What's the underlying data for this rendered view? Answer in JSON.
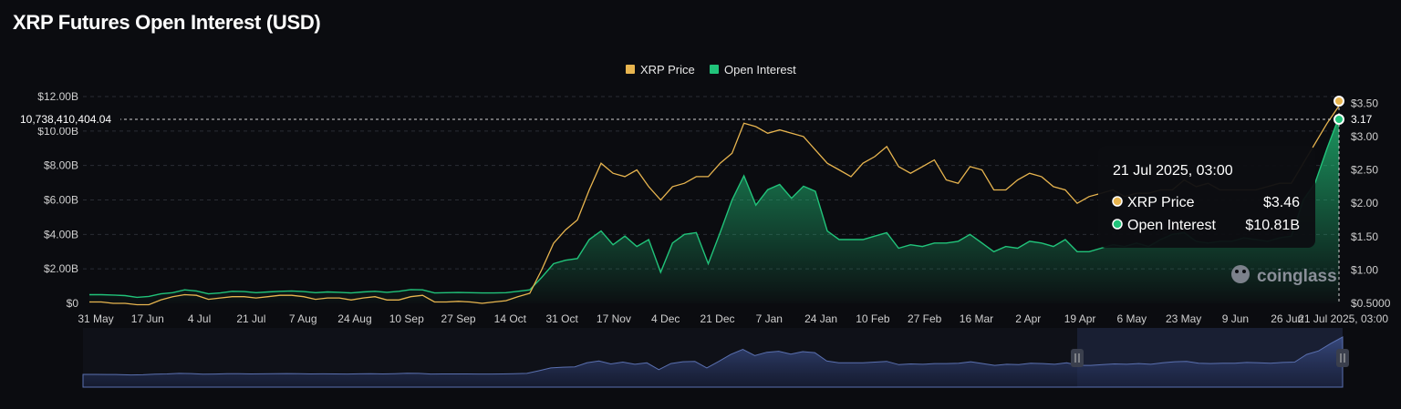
{
  "title": "XRP Futures Open Interest (USD)",
  "brand": "coinglass",
  "colors": {
    "price": "#e8b54f",
    "oi": "#21c37a",
    "background": "#0b0c10",
    "navigator": "#3b4a7a"
  },
  "chart_data": {
    "type": "line",
    "title": "XRP Futures Open Interest (USD)",
    "legend": {
      "position": "top-center",
      "items": [
        {
          "name": "XRP Price",
          "color": "#e8b54f"
        },
        {
          "name": "Open Interest",
          "color": "#21c37a"
        }
      ]
    },
    "grid": true,
    "x_ticks": [
      "31 May",
      "17 Jun",
      "4 Jul",
      "21 Jul",
      "7 Aug",
      "24 Aug",
      "10 Sep",
      "27 Sep",
      "14 Oct",
      "31 Oct",
      "17 Nov",
      "4 Dec",
      "21 Dec",
      "7 Jan",
      "24 Jan",
      "10 Feb",
      "27 Feb",
      "16 Mar",
      "2 Apr",
      "19 Apr",
      "6 May",
      "23 May",
      "9 Jun",
      "26 Jun",
      "21 Jul 2025, 03:00"
    ],
    "y_left": {
      "ticks": [
        "$0",
        "$2.00B",
        "$4.00B",
        "$6.00B",
        "$8.00B",
        "$10.00B",
        "$12.00B"
      ],
      "range": [
        0,
        12
      ]
    },
    "y_right": {
      "ticks": [
        "$0.5000",
        "$1.00",
        "$1.50",
        "$2.00",
        "$2.50",
        "$3.00",
        "$3.50"
      ],
      "range": [
        0.5,
        3.6
      ]
    },
    "crosshair": {
      "left_label": "10,738,410,404.04",
      "right_label": "3.17"
    },
    "tooltip": {
      "date": "21 Jul 2025, 03:00",
      "rows": [
        {
          "name": "XRP Price",
          "value": "$3.46",
          "color": "#e8b54f"
        },
        {
          "name": "Open Interest",
          "value": "$10.81B",
          "color": "#21c37a"
        }
      ]
    },
    "series": [
      {
        "name": "Open Interest",
        "axis": "left",
        "unit": "B USD",
        "values": [
          0.5,
          0.5,
          0.48,
          0.45,
          0.35,
          0.4,
          0.55,
          0.62,
          0.78,
          0.72,
          0.55,
          0.6,
          0.7,
          0.68,
          0.62,
          0.66,
          0.7,
          0.72,
          0.68,
          0.62,
          0.66,
          0.64,
          0.6,
          0.66,
          0.7,
          0.64,
          0.7,
          0.8,
          0.78,
          0.6,
          0.62,
          0.63,
          0.62,
          0.6,
          0.6,
          0.62,
          0.7,
          0.78,
          1.5,
          2.3,
          2.5,
          2.6,
          3.7,
          4.2,
          3.4,
          3.9,
          3.3,
          3.7,
          1.8,
          3.5,
          4.0,
          4.1,
          2.3,
          4.1,
          6.0,
          7.4,
          5.7,
          6.6,
          6.9,
          6.1,
          6.8,
          6.5,
          4.2,
          3.7,
          3.7,
          3.7,
          3.9,
          4.1,
          3.2,
          3.4,
          3.3,
          3.5,
          3.5,
          3.6,
          4.0,
          3.5,
          3.0,
          3.3,
          3.2,
          3.6,
          3.5,
          3.3,
          3.7,
          3.0,
          3.0,
          3.2,
          3.4,
          3.3,
          3.5,
          3.3,
          3.7,
          4.0,
          4.1,
          3.6,
          3.5,
          3.6,
          3.6,
          3.8,
          3.7,
          3.6,
          3.8,
          3.9,
          6.0,
          7.0,
          9.0,
          10.81
        ]
      },
      {
        "name": "XRP Price",
        "axis": "right",
        "unit": "USD",
        "values": [
          0.52,
          0.52,
          0.5,
          0.5,
          0.48,
          0.48,
          0.55,
          0.6,
          0.63,
          0.62,
          0.56,
          0.58,
          0.6,
          0.6,
          0.58,
          0.6,
          0.62,
          0.62,
          0.6,
          0.56,
          0.58,
          0.58,
          0.55,
          0.58,
          0.6,
          0.55,
          0.55,
          0.6,
          0.62,
          0.52,
          0.52,
          0.53,
          0.52,
          0.5,
          0.52,
          0.54,
          0.6,
          0.65,
          1.0,
          1.4,
          1.6,
          1.75,
          2.2,
          2.6,
          2.45,
          2.4,
          2.5,
          2.25,
          2.05,
          2.25,
          2.3,
          2.4,
          2.4,
          2.6,
          2.75,
          3.2,
          3.15,
          3.05,
          3.1,
          3.05,
          3.0,
          2.8,
          2.6,
          2.5,
          2.4,
          2.6,
          2.7,
          2.85,
          2.55,
          2.45,
          2.55,
          2.65,
          2.35,
          2.3,
          2.55,
          2.5,
          2.2,
          2.2,
          2.35,
          2.45,
          2.4,
          2.25,
          2.2,
          2.0,
          2.1,
          2.15,
          2.2,
          2.1,
          2.15,
          2.15,
          2.2,
          2.2,
          2.35,
          2.25,
          2.3,
          2.2,
          2.2,
          2.2,
          2.2,
          2.25,
          2.3,
          2.3,
          2.6,
          2.9,
          3.2,
          3.46
        ]
      }
    ]
  }
}
